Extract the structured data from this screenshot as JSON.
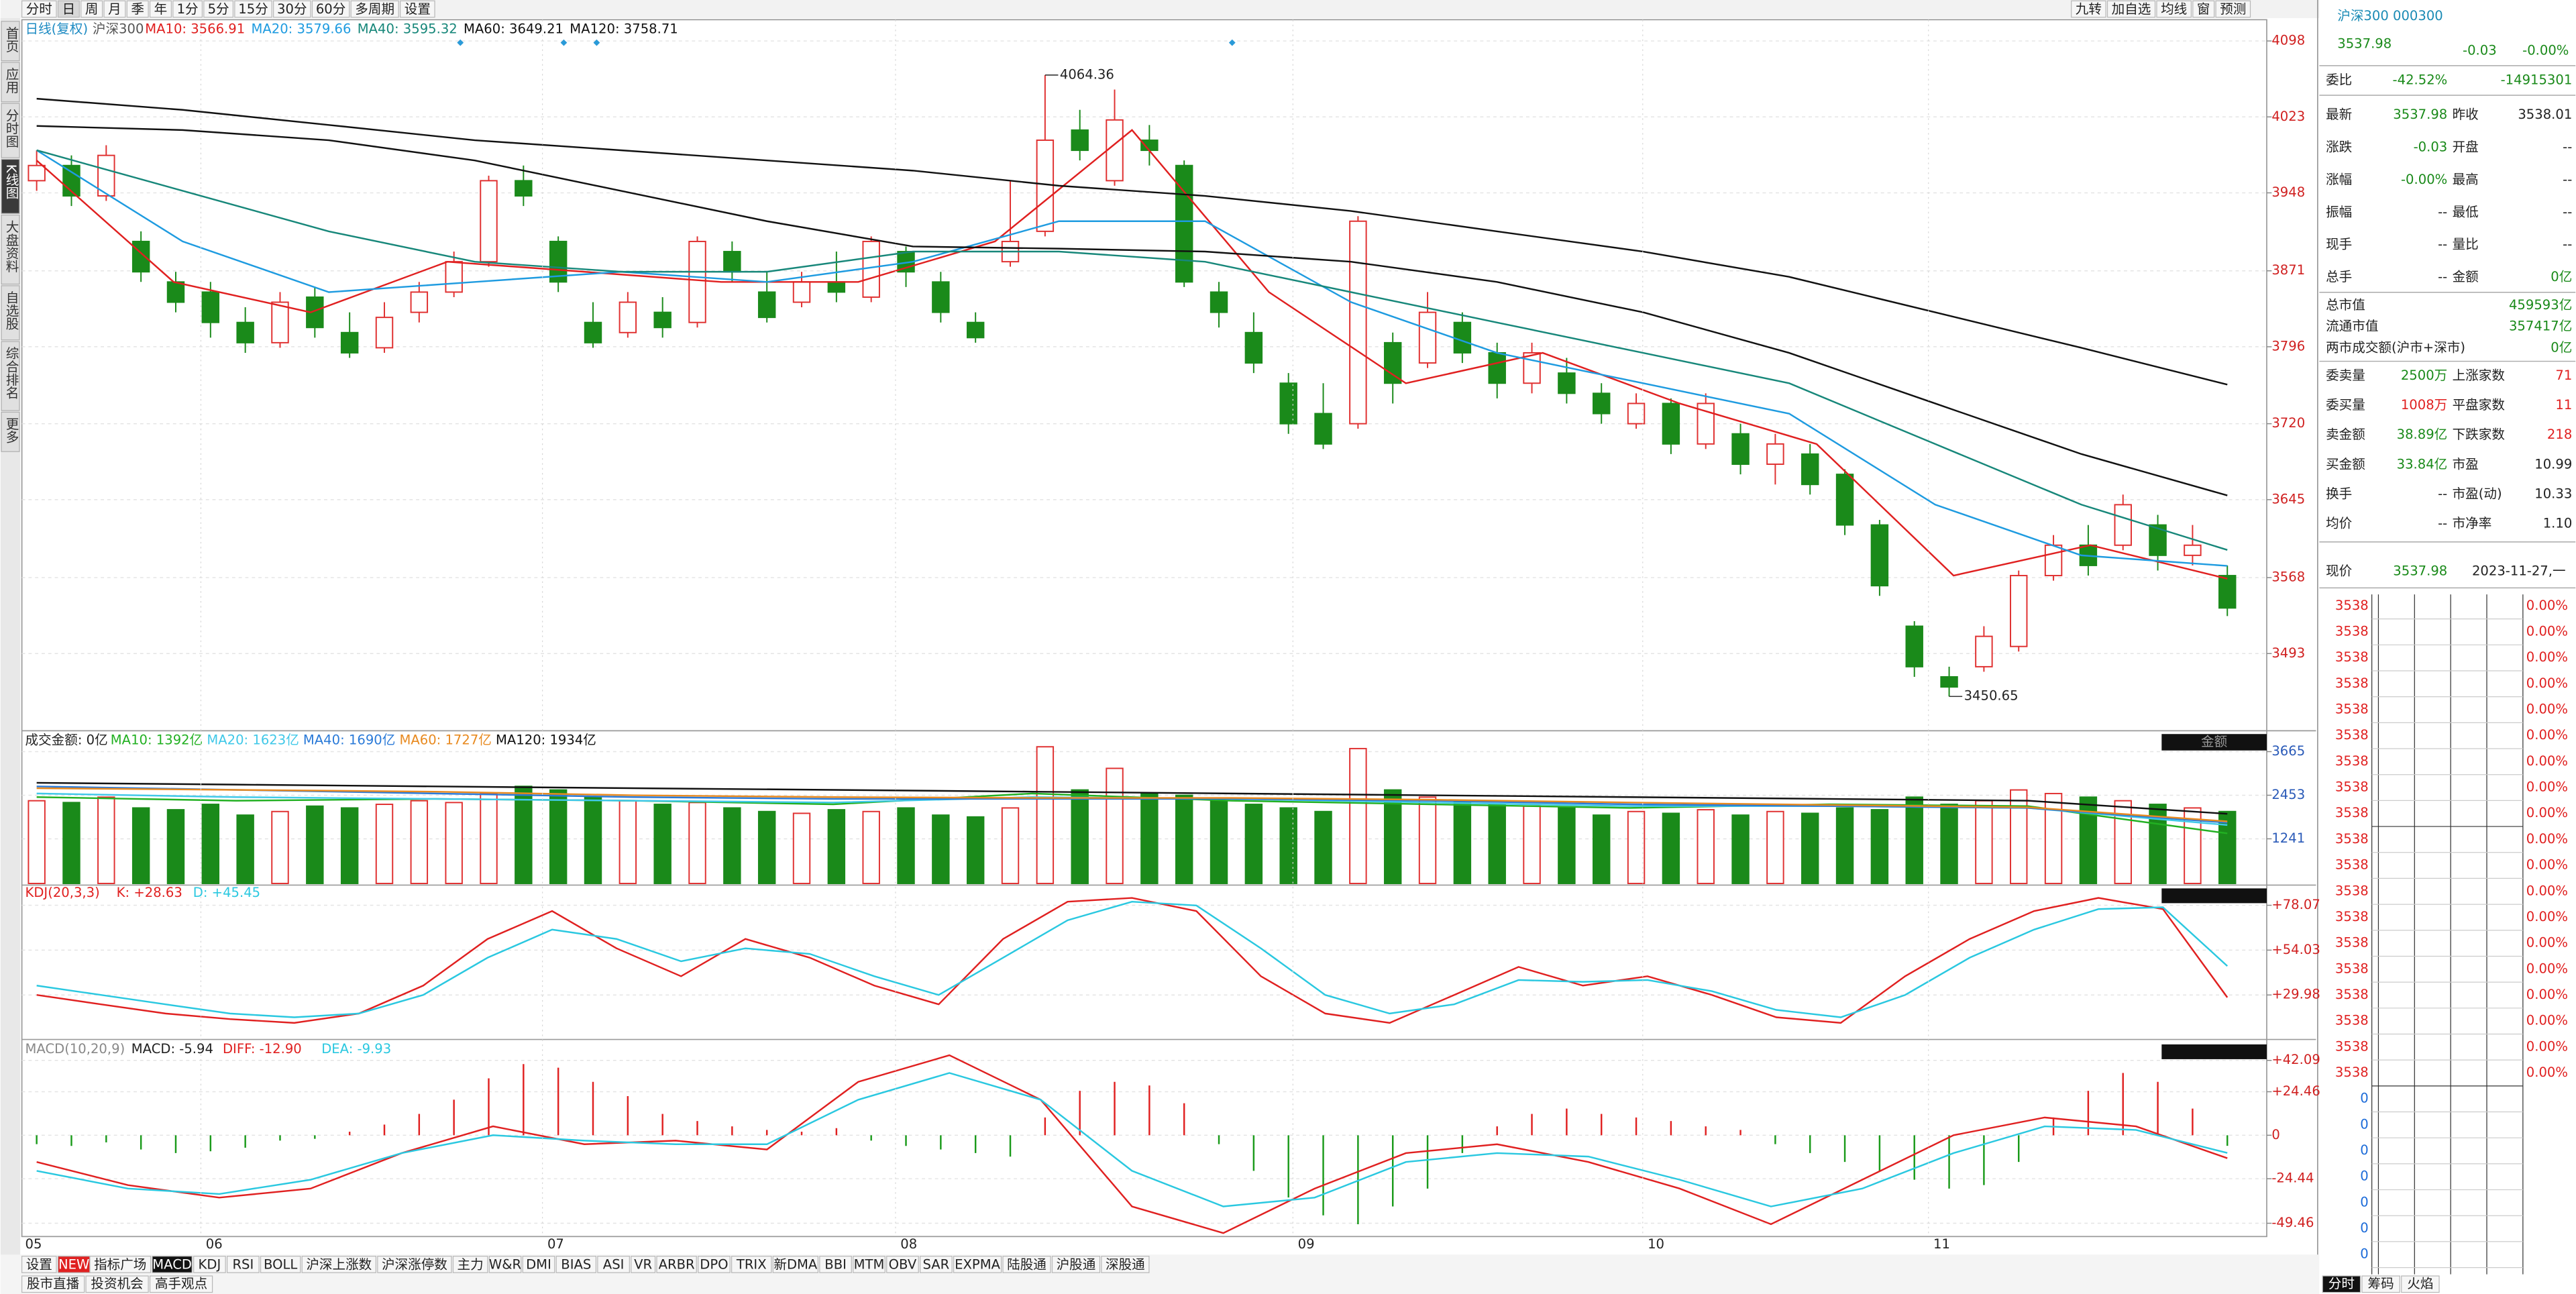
{
  "toolbar": {
    "left": [
      "分时",
      "日",
      "周",
      "月",
      "季",
      "年",
      "1分",
      "5分",
      "15分",
      "30分",
      "60分",
      "多周期",
      "设置"
    ],
    "right": [
      "九转",
      "加自选",
      "均线",
      "窗",
      "预测"
    ]
  },
  "sidebar": [
    "首页",
    "应用",
    "分时图",
    "K线图",
    "大盘资料",
    "自选股",
    "综合排名",
    "更多"
  ],
  "kline": {
    "header": [
      "日线(复权)",
      "沪深300"
    ],
    "ylim": [
      3420,
      4119
    ],
    "yticks": [
      4098,
      4023,
      3948,
      3871,
      3796,
      3720,
      3645,
      3568,
      3493
    ],
    "up_color": "#e03030",
    "down_color": "#1a8a1a",
    "candles": [
      [
        3960,
        3975,
        3990,
        3950
      ],
      [
        3975,
        3945,
        3985,
        3935
      ],
      [
        3945,
        3985,
        3995,
        3940
      ],
      [
        3900,
        3870,
        3910,
        3860
      ],
      [
        3860,
        3840,
        3870,
        3830
      ],
      [
        3850,
        3820,
        3860,
        3805
      ],
      [
        3820,
        3800,
        3835,
        3790
      ],
      [
        3800,
        3840,
        3850,
        3795
      ],
      [
        3845,
        3815,
        3855,
        3805
      ],
      [
        3810,
        3790,
        3830,
        3785
      ],
      [
        3795,
        3825,
        3840,
        3790
      ],
      [
        3830,
        3850,
        3860,
        3820
      ],
      [
        3850,
        3880,
        3890,
        3845
      ],
      [
        3880,
        3960,
        3965,
        3875
      ],
      [
        3960,
        3945,
        3975,
        3935
      ],
      [
        3900,
        3860,
        3905,
        3850
      ],
      [
        3820,
        3800,
        3840,
        3795
      ],
      [
        3810,
        3840,
        3850,
        3805
      ],
      [
        3830,
        3815,
        3845,
        3805
      ],
      [
        3820,
        3900,
        3905,
        3815
      ],
      [
        3890,
        3870,
        3900,
        3860
      ],
      [
        3850,
        3825,
        3870,
        3820
      ],
      [
        3840,
        3860,
        3870,
        3835
      ],
      [
        3860,
        3850,
        3890,
        3840
      ],
      [
        3845,
        3900,
        3905,
        3840
      ],
      [
        3890,
        3870,
        3895,
        3855
      ],
      [
        3860,
        3830,
        3870,
        3820
      ],
      [
        3820,
        3805,
        3830,
        3800
      ],
      [
        3880,
        3900,
        3960,
        3875
      ],
      [
        3910,
        4000,
        4064.36,
        3905
      ],
      [
        4010,
        3990,
        4030,
        3980
      ],
      [
        3960,
        4020,
        4050,
        3955
      ],
      [
        4000,
        3990,
        4015,
        3975
      ],
      [
        3975,
        3860,
        3980,
        3855
      ],
      [
        3850,
        3830,
        3860,
        3815
      ],
      [
        3810,
        3780,
        3830,
        3770
      ],
      [
        3760,
        3720,
        3770,
        3710
      ],
      [
        3730,
        3700,
        3760,
        3695
      ],
      [
        3720,
        3920,
        3925,
        3715
      ],
      [
        3800,
        3760,
        3810,
        3740
      ],
      [
        3780,
        3830,
        3850,
        3775
      ],
      [
        3820,
        3790,
        3830,
        3780
      ],
      [
        3790,
        3760,
        3800,
        3745
      ],
      [
        3760,
        3790,
        3800,
        3750
      ],
      [
        3770,
        3750,
        3785,
        3740
      ],
      [
        3750,
        3730,
        3760,
        3720
      ],
      [
        3720,
        3740,
        3750,
        3715
      ],
      [
        3740,
        3700,
        3745,
        3690
      ],
      [
        3700,
        3740,
        3750,
        3695
      ],
      [
        3710,
        3680,
        3720,
        3670
      ],
      [
        3680,
        3700,
        3710,
        3660
      ],
      [
        3690,
        3660,
        3700,
        3650
      ],
      [
        3670,
        3620,
        3675,
        3610
      ],
      [
        3620,
        3560,
        3625,
        3550
      ],
      [
        3520,
        3480,
        3525,
        3470
      ],
      [
        3470,
        3460,
        3480,
        3450.65
      ],
      [
        3480,
        3510,
        3520,
        3475
      ],
      [
        3500,
        3570,
        3575,
        3495
      ],
      [
        3570,
        3600,
        3610,
        3565
      ],
      [
        3600,
        3580,
        3620,
        3570
      ],
      [
        3600,
        3640,
        3650,
        3595
      ],
      [
        3620,
        3590,
        3630,
        3575
      ],
      [
        3590,
        3600,
        3620,
        3580
      ],
      [
        3570,
        3538,
        3580,
        3530
      ]
    ],
    "high_label": "4064.36",
    "low_label": "3450.65",
    "series": [
      {
        "label": "MA10: 3566.91",
        "color": "#e02020",
        "values": [
          3980,
          3860,
          3830,
          3880,
          3870,
          3860,
          3860,
          3900,
          4010,
          3850,
          3760,
          3790,
          3740,
          3700,
          3570,
          3600,
          3566.91
        ]
      },
      {
        "label": "MA20: 3579.66",
        "color": "#1e9be0",
        "values": [
          3990,
          3900,
          3850,
          3860,
          3870,
          3860,
          3880,
          3920,
          3920,
          3840,
          3790,
          3760,
          3730,
          3640,
          3590,
          3579.66
        ]
      },
      {
        "label": "MA40: 3595.32",
        "color": "#17877a",
        "values": [
          3990,
          3950,
          3910,
          3880,
          3870,
          3870,
          3890,
          3890,
          3880,
          3850,
          3820,
          3790,
          3760,
          3700,
          3640,
          3595.32
        ]
      },
      {
        "label": "MA60: 3649.21",
        "color": "#111111",
        "values": [
          4014,
          4010,
          4000,
          3980,
          3950,
          3920,
          3895,
          3893,
          3890,
          3880,
          3860,
          3830,
          3790,
          3740,
          3690,
          3649.21
        ]
      },
      {
        "label": "MA120: 3758.71",
        "color": "#111111",
        "values": [
          4041,
          4030,
          4015,
          4000,
          3990,
          3980,
          3970,
          3955,
          3945,
          3930,
          3910,
          3890,
          3865,
          3830,
          3795,
          3758.71
        ]
      }
    ]
  },
  "months": [
    "05",
    "06",
    "07",
    "08",
    "09",
    "10",
    "11"
  ],
  "volume": {
    "header": "成交金额: 0亿",
    "selector": "金额",
    "ylim": [
      0,
      4200
    ],
    "yticks": [
      3665,
      2453,
      1241
    ],
    "values": [
      2300,
      2250,
      2400,
      2100,
      2050,
      2200,
      1900,
      2000,
      2150,
      2100,
      2200,
      2300,
      2250,
      2500,
      2700,
      2600,
      2400,
      2300,
      2200,
      2250,
      2100,
      2000,
      1950,
      2050,
      2000,
      2100,
      1900,
      1850,
      2100,
      3800,
      2600,
      3200,
      2500,
      2450,
      2300,
      2200,
      2100,
      2000,
      3750,
      2600,
      2400,
      2300,
      2200,
      2150,
      2100,
      1900,
      2000,
      1950,
      2050,
      1900,
      2000,
      1950,
      2100,
      2050,
      2400,
      2200,
      2300,
      2600,
      2500,
      2400,
      2300,
      2200,
      2100,
      2000
    ],
    "series": [
      {
        "label": "MA10: 1392亿",
        "color": "#22b022",
        "values": [
          2400,
          2300,
          2350,
          2300,
          2200,
          2500,
          2300,
          2200,
          2100,
          2200,
          2150,
          1392
        ]
      },
      {
        "label": "MA20: 1623亿",
        "color": "#40c8e8",
        "values": [
          2500,
          2400,
          2350,
          2300,
          2250,
          2400,
          2350,
          2250,
          2150,
          2150,
          2100,
          1623
        ]
      },
      {
        "label": "MA40: 1690亿",
        "color": "#2a7ad8",
        "values": [
          2700,
          2600,
          2500,
          2400,
          2350,
          2350,
          2350,
          2300,
          2200,
          2150,
          2100,
          1690
        ]
      },
      {
        "label": "MA60: 1727亿",
        "color": "#e88a20",
        "values": [
          2650,
          2600,
          2550,
          2450,
          2400,
          2380,
          2380,
          2330,
          2250,
          2180,
          2120,
          1727
        ]
      },
      {
        "label": "MA120: 1934亿",
        "color": "#111111",
        "values": [
          2800,
          2750,
          2700,
          2650,
          2600,
          2550,
          2500,
          2450,
          2400,
          2350,
          2300,
          1934
        ]
      }
    ]
  },
  "kdj": {
    "ylim": [
      7,
      88
    ],
    "yticks": [
      {
        "value": 78.07,
        "label": "+78.07"
      },
      {
        "value": 54.03,
        "label": "+54.03"
      },
      {
        "value": 29.98,
        "label": "+29.98"
      }
    ],
    "series": [
      {
        "label": "KDJ(20,3,3)",
        "color": "#e02020"
      },
      {
        "label": "K: +28.63",
        "color": "#e02020",
        "values": [
          30,
          25,
          20,
          17,
          15,
          20,
          35,
          60,
          75,
          55,
          40,
          60,
          50,
          35,
          25,
          60,
          80,
          82,
          75,
          40,
          20,
          15,
          30,
          45,
          35,
          40,
          30,
          18,
          15,
          40,
          60,
          75,
          82,
          76,
          28.63
        ]
      },
      {
        "label": "D: +45.45",
        "color": "#2ac8e0",
        "values": [
          35,
          30,
          25,
          20,
          18,
          20,
          30,
          50,
          65,
          60,
          48,
          55,
          52,
          40,
          30,
          50,
          70,
          80,
          78,
          55,
          30,
          20,
          25,
          38,
          37,
          38,
          32,
          22,
          18,
          30,
          50,
          65,
          76,
          77,
          45.45
        ]
      }
    ]
  },
  "macd": {
    "ylim": [
      -56,
      52
    ],
    "yticks": [
      {
        "value": 42.09,
        "label": "+42.09"
      },
      {
        "value": 24.46,
        "label": "+24.46"
      },
      0,
      -24.44,
      -49.46
    ],
    "title": "MACD(10,20,9)",
    "bar_label": "MACD: -5.94",
    "bars": [
      -5,
      -6,
      -4,
      -8,
      -10,
      -9,
      -7,
      -3,
      -2,
      2,
      6,
      12,
      20,
      32,
      40,
      38,
      30,
      22,
      12,
      8,
      5,
      3,
      2,
      4,
      -3,
      -6,
      -8,
      -10,
      -12,
      10,
      25,
      30,
      28,
      18,
      -5,
      -20,
      -35,
      -45,
      -50,
      -40,
      -30,
      -10,
      5,
      12,
      15,
      12,
      10,
      8,
      5,
      3,
      -5,
      -10,
      -15,
      -20,
      -25,
      -30,
      -28,
      -15,
      10,
      25,
      35,
      30,
      15,
      -5.94
    ],
    "series": [
      {
        "label": "DIFF: -12.90",
        "color": "#e02020",
        "values": [
          -15,
          -28,
          -35,
          -30,
          -10,
          5,
          -5,
          -3,
          -8,
          30,
          45,
          20,
          -40,
          -55,
          -30,
          -10,
          -5,
          -15,
          -30,
          -50,
          -25,
          0,
          10,
          5,
          -12.9
        ]
      },
      {
        "label": "DEA: -9.93",
        "color": "#2ac8e0",
        "values": [
          -20,
          -30,
          -33,
          -25,
          -10,
          0,
          -3,
          -5,
          -5,
          20,
          35,
          20,
          -20,
          -40,
          -35,
          -15,
          -10,
          -12,
          -25,
          -40,
          -30,
          -10,
          5,
          3,
          -9.93
        ]
      }
    ]
  },
  "bottom_tabs": [
    "设置",
    "NEW",
    "指标广场",
    "MACD",
    "KDJ",
    "RSI",
    "BOLL",
    "沪深上涨数",
    "沪深涨停数",
    "主力",
    "W&R",
    "DMI",
    "BIAS",
    "ASI",
    "VR",
    "ARBR",
    "DPO",
    "TRIX",
    "新DMA",
    "BBI",
    "MTM",
    "OBV",
    "SAR",
    "EXPMA",
    "陆股通",
    "沪股通",
    "深股通"
  ],
  "bottom_links": [
    "股市直播",
    "投资机会",
    "高手观点"
  ],
  "quote": {
    "name": "沪深300 000300",
    "price": "3537.98",
    "change": "-0.03",
    "change_pct": "-0.00%",
    "weibi": [
      "委比",
      "-42.52%",
      "-14915301"
    ],
    "rows": [
      [
        {
          "label": "最新",
          "value": "3537.98",
          "color": "#1a8a1a"
        },
        {
          "label": "昨收",
          "value": "3538.01"
        }
      ],
      [
        {
          "label": "涨跌",
          "value": "-0.03",
          "color": "#1a8a1a"
        },
        {
          "label": "开盘",
          "value": "--"
        }
      ],
      [
        {
          "label": "涨幅",
          "value": "-0.00%",
          "color": "#1a8a1a"
        },
        {
          "label": "最高",
          "value": "--"
        }
      ],
      [
        {
          "label": "振幅",
          "value": "--"
        },
        {
          "label": "最低",
          "value": "--"
        }
      ],
      [
        {
          "label": "现手",
          "value": "--"
        },
        {
          "label": "量比",
          "value": "--"
        }
      ],
      [
        {
          "label": "总手",
          "value": "--"
        },
        {
          "label": "金额",
          "value": "0亿",
          "color": "#1a8a1a"
        }
      ]
    ],
    "caps": [
      {
        "label": "总市值",
        "value": "459593亿",
        "color": "#1a8a1a"
      },
      {
        "label": "流通市值",
        "value": "357417亿",
        "color": "#1a8a1a"
      },
      {
        "label": "两市成交额(沪市+深市)",
        "value": "0亿",
        "color": "#1a8a1a"
      }
    ],
    "rows2": [
      [
        {
          "label": "委卖量",
          "value": "2500万",
          "color": "#1a8a1a"
        },
        {
          "label": "上涨家数",
          "value": "71",
          "color": "#e02020"
        }
      ],
      [
        {
          "label": "委买量",
          "value": "1008万",
          "color": "#e02020"
        },
        {
          "label": "平盘家数",
          "value": "11",
          "color": "#e02020"
        }
      ],
      [
        {
          "label": "卖金额",
          "value": "38.89亿",
          "color": "#1a8a1a"
        },
        {
          "label": "下跌家数",
          "value": "218",
          "color": "#e02020"
        }
      ],
      [
        {
          "label": "买金额",
          "value": "33.84亿",
          "color": "#1a8a1a"
        },
        {
          "label": "市盈",
          "value": "10.99"
        }
      ],
      [
        {
          "label": "换手",
          "value": "--"
        },
        {
          "label": "市盈(动)",
          "value": "10.33"
        }
      ],
      [
        {
          "label": "均价",
          "value": "--"
        },
        {
          "label": "市净率",
          "value": "1.10"
        }
      ]
    ],
    "now": [
      "现价",
      "3537.98",
      "2023-11-27,一"
    ],
    "ticks": [
      [
        3538,
        "0.00%"
      ],
      [
        3538,
        "0.00%"
      ],
      [
        3538,
        "0.00%"
      ],
      [
        3538,
        "0.00%"
      ],
      [
        3538,
        "0.00%"
      ],
      [
        3538,
        "0.00%"
      ],
      [
        3538,
        "0.00%"
      ],
      [
        3538,
        "0.00%"
      ],
      [
        3538,
        "0.00%"
      ],
      [
        3538,
        "0.00%"
      ],
      [
        3538,
        "0.00%"
      ],
      [
        3538,
        "0.00%"
      ],
      [
        3538,
        "0.00%"
      ],
      [
        3538,
        "0.00%"
      ],
      [
        3538,
        "0.00%"
      ],
      [
        3538,
        "0.00%"
      ],
      [
        3538,
        "0.00%"
      ],
      [
        3538,
        "0.00%"
      ],
      [
        3538,
        "0.00%"
      ],
      [
        0
      ],
      [
        0
      ],
      [
        0
      ],
      [
        0
      ],
      [
        0
      ],
      [
        0
      ],
      [
        0
      ]
    ],
    "tabs": [
      "分时",
      "筹码",
      "火焰"
    ]
  }
}
